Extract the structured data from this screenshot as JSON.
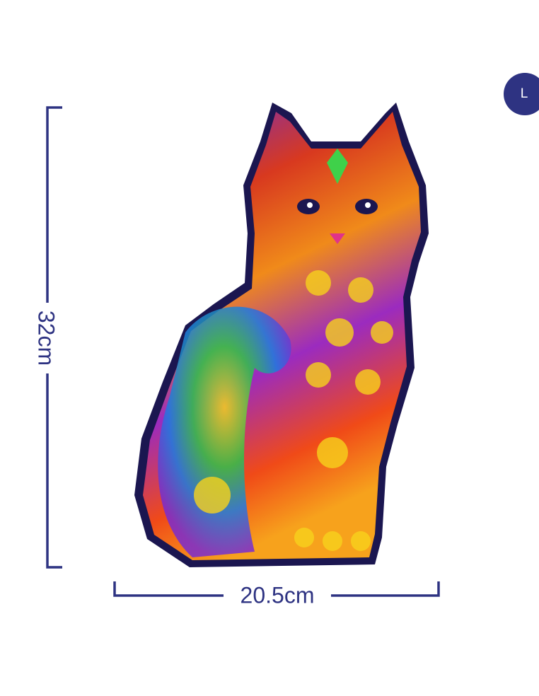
{
  "product": {
    "size_badge": "L",
    "height_label": "32cm",
    "width_label": "20.5cm"
  },
  "colors": {
    "dimension_lines": "#2e3382",
    "badge_background": "#2e3382",
    "outline": "#1b1650"
  },
  "image": {
    "subject_icon": "cat-puzzle-icon"
  }
}
